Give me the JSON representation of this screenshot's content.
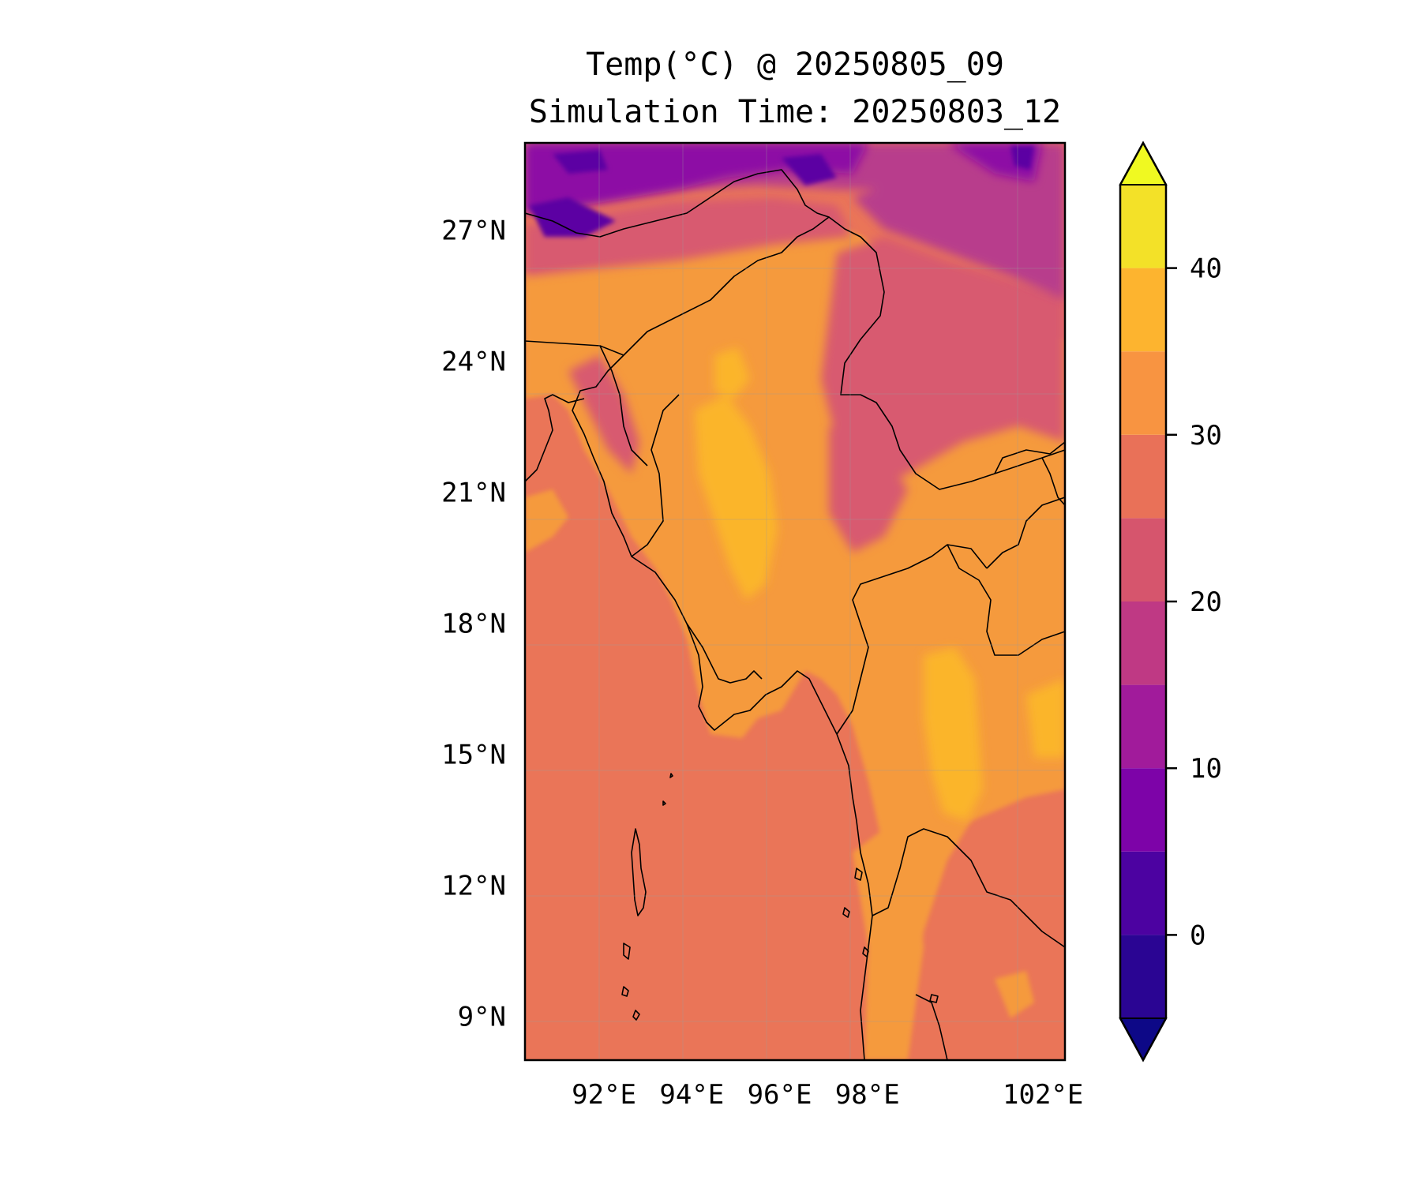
{
  "title": {
    "line1": "Temp(°C) @ 20250805_09",
    "line2": "Simulation Time: 20250803_12"
  },
  "map": {
    "lon_range": [
      90.2,
      102.5
    ],
    "lat_range": [
      8.0,
      29.0
    ],
    "lat_ticks": [
      {
        "value": 27,
        "label": "27°N"
      },
      {
        "value": 24,
        "label": "24°N"
      },
      {
        "value": 21,
        "label": "21°N"
      },
      {
        "value": 18,
        "label": "18°N"
      },
      {
        "value": 15,
        "label": "15°N"
      },
      {
        "value": 12,
        "label": "12°N"
      },
      {
        "value": 9,
        "label": "9°N"
      }
    ],
    "lon_ticks": [
      {
        "value": 92,
        "label": "92°E"
      },
      {
        "value": 94,
        "label": "94°E"
      },
      {
        "value": 96,
        "label": "96°E"
      },
      {
        "value": 98,
        "label": "98°E"
      },
      {
        "value": 102,
        "label": "102°E"
      }
    ],
    "colors": {
      "sea": "#ea7558",
      "warm": "#f59a3e",
      "hot": "#fbb52b",
      "mild": "#d85a6f",
      "cool": "#b83c8c",
      "cold": "#8d0aa5",
      "frost": "#5b02a3",
      "coastline": "#000000"
    }
  },
  "colorbar": {
    "range": [
      -5,
      45
    ],
    "ticks": [
      {
        "value": 40,
        "label": "40"
      },
      {
        "value": 30,
        "label": "30"
      },
      {
        "value": 20,
        "label": "20"
      },
      {
        "value": 10,
        "label": "10"
      },
      {
        "value": 0,
        "label": "0"
      }
    ],
    "levels": [
      -5,
      0,
      5,
      10,
      15,
      20,
      25,
      30,
      35,
      40,
      45
    ],
    "colors": [
      "#2a0593",
      "#4c02a1",
      "#7d03a8",
      "#a11b9b",
      "#bf3984",
      "#d6556d",
      "#e97158",
      "#f89441",
      "#fdb42f",
      "#f3e128"
    ],
    "extend_low": "#0d0887",
    "extend_high": "#f0f921"
  }
}
